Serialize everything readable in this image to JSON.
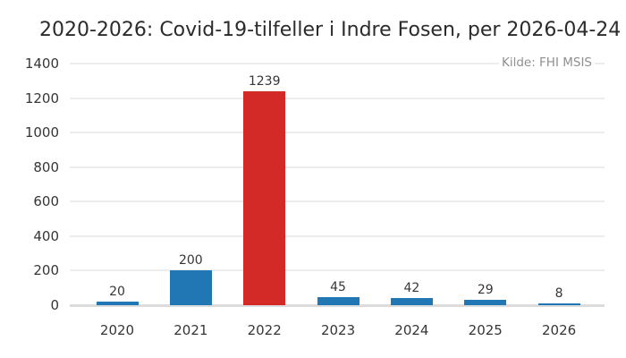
{
  "colors": {
    "bar_default": "#2077b4",
    "bar_highlight": "#d32a28",
    "grid_line": "#ececec",
    "zero_line": "#dcdcdc",
    "title_text": "#2b2b2b",
    "axis_text": "#363636",
    "source_text": "#8f8f8f",
    "background": "#ffffff"
  },
  "chart_data": {
    "type": "bar",
    "title": "2020-2026: Covid-19-tilfeller i Indre Fosen, per 2026-04-24",
    "source": "Kilde: FHI MSIS",
    "categories": [
      "2020",
      "2021",
      "2022",
      "2023",
      "2024",
      "2025",
      "2026"
    ],
    "values": [
      20,
      200,
      1239,
      45,
      42,
      29,
      8
    ],
    "bar_colors": [
      "#2077b4",
      "#2077b4",
      "#d32a28",
      "#2077b4",
      "#2077b4",
      "#2077b4",
      "#2077b4"
    ],
    "highlighted_category": "2022",
    "xlabel": "",
    "ylabel": "",
    "ylim": [
      0,
      1400
    ],
    "yticks": [
      0,
      200,
      400,
      600,
      800,
      1000,
      1200,
      1400
    ],
    "grid": true,
    "legend": false,
    "value_labels_shown": true
  }
}
